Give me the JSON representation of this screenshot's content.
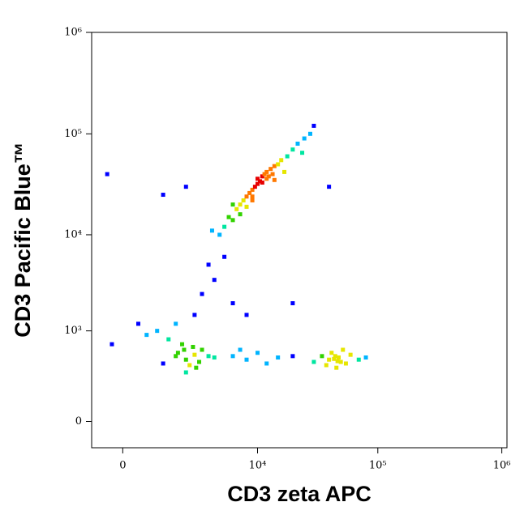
{
  "chart_data": {
    "type": "scatter",
    "x_label": "CD3 zeta APC",
    "y_label": "CD3 Pacific Blue™",
    "xscale": "biexponential",
    "yscale": "biexponential",
    "xlim": [
      -700,
      1100000
    ],
    "ylim": [
      -120,
      1000000
    ],
    "xticks": [
      0,
      {
        "value": 10000,
        "label": "10⁴"
      },
      {
        "value": 100000,
        "label": "10⁵"
      },
      {
        "value": 1000000,
        "label": "10⁶"
      }
    ],
    "yticks": [
      0,
      {
        "value": 1000,
        "label": "10³"
      },
      {
        "value": 10000,
        "label": "10⁴"
      },
      {
        "value": 100000,
        "label": "10⁵"
      },
      {
        "value": 1000000,
        "label": "10⁶"
      }
    ],
    "colormap": [
      "#0000ff",
      "#00b4ff",
      "#00e6a0",
      "#32d200",
      "#e6e600",
      "#ff7800",
      "#e60000"
    ],
    "x": [
      5000,
      5500,
      6000,
      6500,
      7000,
      7000,
      7500,
      8000,
      8000,
      8500,
      9000,
      9000,
      9500,
      10000,
      10000,
      10500,
      11000,
      11000,
      11500,
      12000,
      12000,
      12500,
      13000,
      13500,
      14000,
      15000,
      16000,
      18000,
      20000,
      22000,
      25000,
      28000,
      6000,
      9000,
      14000,
      4500,
      3800,
      30000,
      17000,
      24000,
      2500,
      3000,
      4000,
      3500,
      5000,
      1500,
      6000,
      8000,
      20000,
      2000,
      1000,
      -300,
      40000,
      1500,
      2000,
      2500,
      1800,
      2200,
      3000,
      1200,
      800,
      500,
      2800,
      2000,
      1600,
      3500,
      4000,
      2400,
      -200,
      300,
      1000,
      2600,
      1900,
      6000,
      8000,
      10000,
      15000,
      20000,
      12000,
      7000,
      40000,
      45000,
      50000,
      48000,
      42000,
      55000,
      38000,
      60000,
      46000,
      52000,
      35000,
      70000,
      44000,
      47000,
      30000,
      80000
    ],
    "y": [
      12000,
      15000,
      14000,
      18000,
      20000,
      16000,
      22000,
      24000,
      19000,
      26000,
      28000,
      24000,
      30000,
      32000,
      36000,
      34000,
      38000,
      33000,
      40000,
      36000,
      42000,
      38000,
      45000,
      40000,
      48000,
      50000,
      55000,
      60000,
      70000,
      80000,
      90000,
      100000,
      20000,
      22000,
      35000,
      10000,
      11000,
      120000,
      42000,
      65000,
      1500,
      2500,
      3500,
      5000,
      6000,
      1200,
      2000,
      1500,
      2000,
      30000,
      25000,
      40000,
      30000,
      500,
      450,
      520,
      700,
      380,
      600,
      800,
      1000,
      900,
      420,
      300,
      550,
      500,
      480,
      650,
      700,
      1200,
      400,
      350,
      600,
      500,
      450,
      550,
      480,
      500,
      400,
      600,
      450,
      500,
      420,
      480,
      550,
      400,
      380,
      520,
      350,
      600,
      500,
      450,
      460,
      430,
      420,
      480
    ]
  }
}
